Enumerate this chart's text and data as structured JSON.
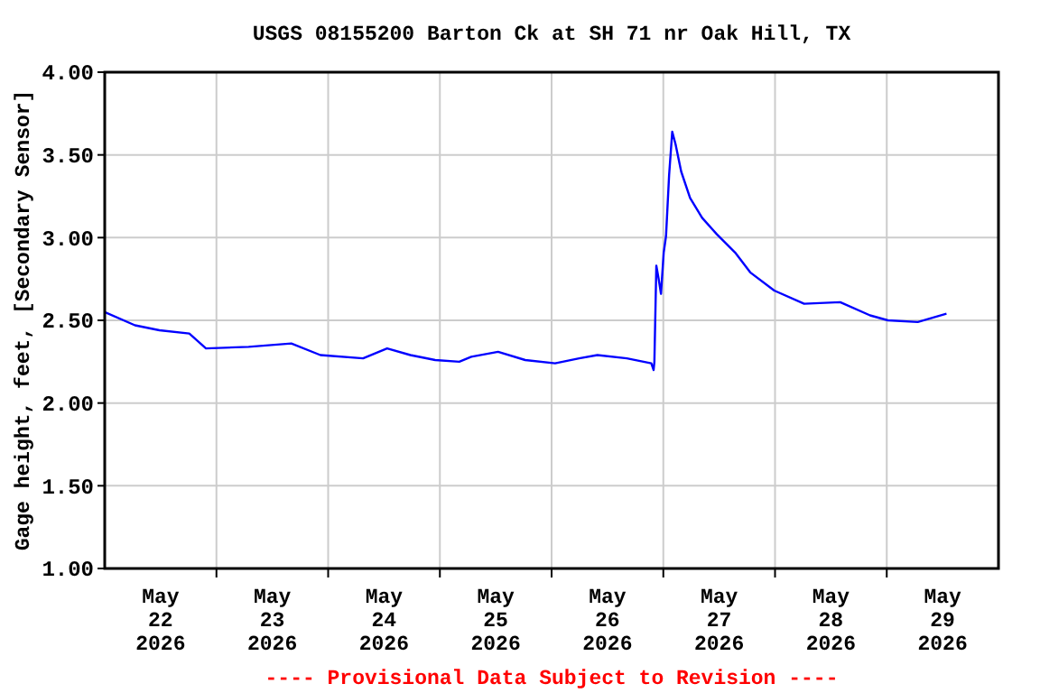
{
  "chart_data": {
    "type": "line",
    "title": "USGS 08155200 Barton Ck at SH 71 nr Oak Hill, TX",
    "ylabel": "Gage height, feet, [Secondary Sensor]",
    "annotations": [
      "---- Provisional Data Subject to Revision ----"
    ],
    "x": [
      "2026-05-22T00:00",
      "2026-05-22T06:30",
      "2026-05-22T11:45",
      "2026-05-22T18:10",
      "2026-05-22T21:45",
      "2026-05-23T06:55",
      "2026-05-23T16:05",
      "2026-05-23T22:20",
      "2026-05-24T07:30",
      "2026-05-24T12:40",
      "2026-05-24T17:40",
      "2026-05-24T23:00",
      "2026-05-25T04:10",
      "2026-05-25T06:45",
      "2026-05-25T12:30",
      "2026-05-25T18:20",
      "2026-05-26T00:45",
      "2026-05-26T05:55",
      "2026-05-26T09:50",
      "2026-05-26T16:10",
      "2026-05-26T21:25",
      "2026-05-26T21:55",
      "2026-05-26T22:05",
      "2026-05-26T22:30",
      "2026-05-26T23:00",
      "2026-05-26T23:30",
      "2026-05-27T00:05",
      "2026-05-27T00:35",
      "2026-05-27T01:15",
      "2026-05-27T01:55",
      "2026-05-27T02:40",
      "2026-05-27T03:50",
      "2026-05-27T05:45",
      "2026-05-27T08:20",
      "2026-05-27T11:30",
      "2026-05-27T15:25",
      "2026-05-27T18:40",
      "2026-05-27T23:50",
      "2026-05-28T06:15",
      "2026-05-28T14:00",
      "2026-05-28T20:25",
      "2026-05-29T00:15",
      "2026-05-29T06:40",
      "2026-05-29T12:50"
    ],
    "series": [
      {
        "color": "#0000ff",
        "values": [
          2.55,
          2.47,
          2.44,
          2.42,
          2.33,
          2.34,
          2.36,
          2.29,
          2.27,
          2.33,
          2.29,
          2.26,
          2.25,
          2.28,
          2.31,
          2.26,
          2.24,
          2.27,
          2.29,
          2.27,
          2.24,
          2.2,
          2.25,
          2.83,
          2.75,
          2.66,
          2.91,
          3.01,
          3.38,
          3.64,
          3.56,
          3.4,
          3.24,
          3.12,
          3.02,
          2.91,
          2.79,
          2.68,
          2.6,
          2.61,
          2.53,
          2.5,
          2.49,
          2.54
        ]
      }
    ],
    "xlim": [
      "2026-05-22",
      "2026-05-30"
    ],
    "xticks": [
      {
        "value": "2026-05-22T12:00",
        "label": "May\n22\n2026"
      },
      {
        "value": "2026-05-23T12:00",
        "label": "May\n23\n2026"
      },
      {
        "value": "2026-05-24T12:00",
        "label": "May\n24\n2026"
      },
      {
        "value": "2026-05-25T12:00",
        "label": "May\n25\n2026"
      },
      {
        "value": "2026-05-26T12:00",
        "label": "May\n26\n2026"
      },
      {
        "value": "2026-05-27T12:00",
        "label": "May\n27\n2026"
      },
      {
        "value": "2026-05-28T12:00",
        "label": "May\n28\n2026"
      },
      {
        "value": "2026-05-29T12:00",
        "label": "May\n29\n2026"
      },
      {
        "value": "2026-05-23",
        "label": null
      },
      {
        "value": "2026-05-24",
        "label": null
      },
      {
        "value": "2026-05-25",
        "label": null
      },
      {
        "value": "2026-05-26",
        "label": null
      },
      {
        "value": "2026-05-27",
        "label": null
      },
      {
        "value": "2026-05-28",
        "label": null
      },
      {
        "value": "2026-05-29",
        "label": null
      }
    ],
    "ylim": [
      1,
      4
    ],
    "yticks": [
      {
        "value": 1,
        "label": "1.00"
      },
      {
        "value": 1.5,
        "label": "1.50"
      },
      {
        "value": 2,
        "label": "2.00"
      },
      {
        "value": 2.5,
        "label": "2.50"
      },
      {
        "value": 3,
        "label": "3.00"
      },
      {
        "value": 3.5,
        "label": "3.50"
      },
      {
        "value": 4,
        "label": "4.00"
      }
    ],
    "grid": true,
    "marker": "none",
    "line_style": "solid"
  }
}
